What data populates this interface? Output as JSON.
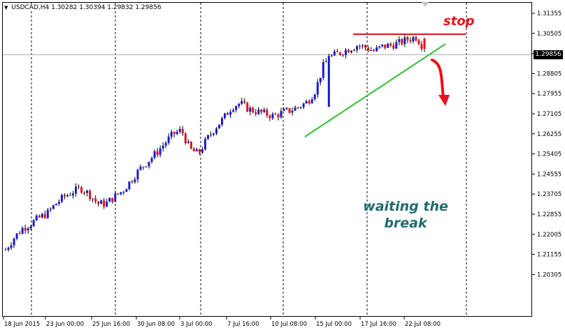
{
  "header": {
    "dropdown_icon": "triangle-down-icon",
    "symbol": "USDCAD,H4",
    "ohlc": "1.30282 1.30394 1.29832 1.29856"
  },
  "current_price": "1.29856",
  "price_axis": [
    "1.31355",
    "1.30505",
    "1.29655",
    "1.28805",
    "1.27955",
    "1.27105",
    "1.26255",
    "1.25405",
    "1.24555",
    "1.23705",
    "1.22855",
    "1.22005",
    "1.21155",
    "1.20305"
  ],
  "time_axis": [
    "18 Jun 2015",
    "23 Jun 00:00",
    "25 Jun 16:00",
    "30 Jun 08:00",
    "3 Jul 00:00",
    "7 Jul 16:00",
    "10 Jul 08:00",
    "15 Jul 00:00",
    "17 Jul 16:00",
    "22 Jul 08:00"
  ],
  "annotations": {
    "stop": "stop",
    "waiting": "waiting the break"
  },
  "colors": {
    "bull": "#1a1acc",
    "bear": "#e8101a",
    "wick": "#000000",
    "stop_line": "#e8101a",
    "trend_line": "#2fc02f",
    "arrow": "#e8101a",
    "wait_text": "#1f6b6e"
  },
  "chart_data": {
    "type": "candlestick",
    "symbol": "USDCAD",
    "timeframe": "H4",
    "ylim": [
      1.2,
      1.3185
    ],
    "grid": "vertical dashed only",
    "close_path": [
      1.2135,
      1.2185,
      1.2225,
      1.2245,
      1.227,
      1.229,
      1.233,
      1.236,
      1.238,
      1.2395,
      1.237,
      1.233,
      1.233,
      1.236,
      1.2385,
      1.243,
      1.2475,
      1.251,
      1.2545,
      1.2585,
      1.2625,
      1.264,
      1.256,
      1.254,
      1.26,
      1.265,
      1.269,
      1.274,
      1.2755,
      1.273,
      1.272,
      1.271,
      1.27,
      1.2715,
      1.2725,
      1.274,
      1.276,
      1.281,
      1.292,
      1.2955,
      1.297,
      1.2985,
      1.3,
      1.299,
      1.2975,
      1.2995,
      1.3,
      1.301,
      1.3025,
      1.3035,
      1.2985
    ]
  }
}
